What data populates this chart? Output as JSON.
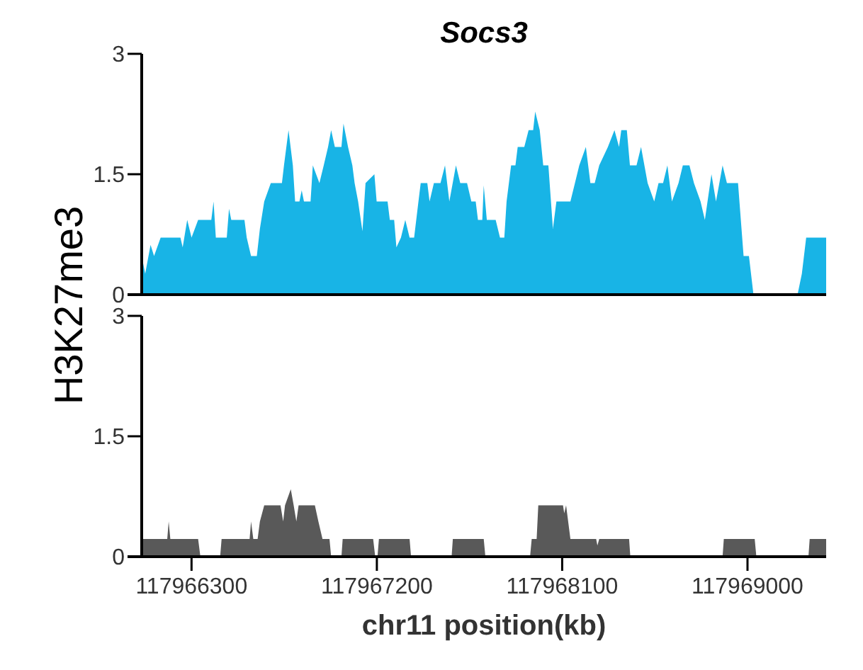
{
  "chart_data": [
    {
      "type": "area",
      "title": "Socs3",
      "ylabel": "H3K27me3",
      "tick_labels": "y",
      "color": "#18b4e6",
      "xlim": [
        117966058,
        117969382
      ],
      "ylim": [
        0,
        3
      ],
      "yticks": [
        0,
        1.5,
        3
      ],
      "x": [
        117966058,
        117966075,
        117966101,
        117966118,
        117966150,
        117966246,
        117966257,
        117966279,
        117966300,
        117966332,
        117966396,
        117966407,
        117966418,
        117966471,
        117966482,
        117966493,
        117966557,
        117966568,
        117966589,
        117966617,
        117966632,
        117966653,
        117966685,
        117966739,
        117966749,
        117966771,
        117966792,
        117966803,
        117966824,
        117966835,
        117966846,
        117966878,
        117966889,
        117966921,
        117966942,
        117966963,
        117966978,
        117966996,
        117967028,
        117967038,
        117967060,
        117967081,
        117967092,
        117967109,
        117967130,
        117967145,
        117967188,
        117967199,
        117967252,
        117967263,
        117967284,
        117967295,
        117967317,
        117967338,
        117967359,
        117967381,
        117967402,
        117967413,
        117967445,
        117967456,
        117967477,
        117967509,
        117967531,
        117967552,
        117967584,
        117967605,
        117967638,
        117967659,
        117967680,
        117967691,
        117967712,
        117967719,
        117967734,
        117967777,
        117967798,
        117967819,
        117967830,
        117967852,
        117967873,
        117967884,
        117967916,
        117967937,
        117967959,
        117967969,
        117967991,
        117968008,
        117968033,
        117968055,
        117968072,
        117968140,
        117968162,
        117968183,
        117968215,
        117968237,
        117968258,
        117968280,
        117968322,
        117968354,
        117968376,
        117968387,
        117968414,
        117968429,
        117968461,
        117968483,
        117968515,
        117968547,
        117968568,
        117968590,
        117968611,
        117968633,
        117968665,
        117968686,
        117968718,
        117968740,
        117968772,
        117968793,
        117968825,
        117968847,
        117968879,
        117968900,
        117968954,
        117968981,
        117969007,
        117969029,
        117969243,
        117969264,
        117969285,
        117969382
      ],
      "values": [
        0.48,
        0.26,
        0.62,
        0.48,
        0.71,
        0.71,
        0.59,
        0.93,
        0.71,
        0.93,
        0.93,
        1.16,
        0.71,
        0.71,
        1.07,
        0.93,
        0.93,
        0.71,
        0.48,
        0.48,
        0.82,
        1.16,
        1.39,
        1.39,
        1.61,
        2.05,
        1.61,
        1.16,
        1.16,
        1.3,
        1.16,
        1.16,
        1.61,
        1.39,
        1.61,
        1.84,
        2.05,
        1.84,
        1.84,
        2.13,
        1.84,
        1.61,
        1.39,
        1.16,
        0.79,
        1.39,
        1.5,
        1.16,
        1.16,
        0.93,
        0.93,
        0.59,
        0.71,
        0.93,
        0.71,
        0.71,
        1.16,
        1.39,
        1.39,
        1.16,
        1.39,
        1.39,
        1.61,
        1.16,
        1.61,
        1.39,
        1.39,
        1.16,
        1.16,
        0.93,
        0.93,
        1.36,
        0.93,
        0.93,
        0.71,
        0.71,
        1.16,
        1.61,
        1.61,
        1.84,
        1.84,
        2.05,
        2.05,
        2.28,
        2.05,
        1.61,
        1.61,
        0.82,
        1.16,
        1.16,
        1.39,
        1.61,
        1.84,
        1.39,
        1.39,
        1.61,
        1.84,
        2.05,
        1.84,
        2.05,
        2.05,
        1.61,
        1.61,
        1.84,
        1.39,
        1.16,
        1.39,
        1.39,
        1.61,
        1.16,
        1.39,
        1.61,
        1.61,
        1.39,
        1.16,
        0.93,
        1.5,
        1.16,
        1.61,
        1.39,
        1.39,
        0.48,
        0.48,
        0,
        0,
        0.26,
        0.71,
        0.71
      ]
    },
    {
      "type": "area",
      "xlabel": "chr11 position(kb)",
      "color": "#595959",
      "xlim": [
        117966058,
        117969382
      ],
      "ylim": [
        0,
        3
      ],
      "yticks": [
        0,
        1.5,
        3
      ],
      "xticks": [
        117966300,
        117967200,
        117968100,
        117969000
      ],
      "x": [
        117966058,
        117966182,
        117966189,
        117966197,
        117966332,
        117966343,
        117966439,
        117966446,
        117966582,
        117966589,
        117966600,
        117966621,
        117966632,
        117966653,
        117966732,
        117966745,
        117966754,
        117966782,
        117966796,
        117966809,
        117966820,
        117966899,
        117966916,
        117966936,
        117966970,
        117966978,
        117967028,
        117967034,
        117967182,
        117967192,
        117967203,
        117967210,
        117967359,
        117967366,
        117967563,
        117967569,
        117967719,
        117967727,
        117967944,
        117967952,
        117967976,
        117967984,
        117968104,
        117968110,
        117968119,
        117968140,
        117968265,
        117968271,
        117968280,
        117968425,
        117968431,
        117968879,
        117968885,
        117969035,
        117969043,
        117969296,
        117969302,
        117969382
      ],
      "values": [
        0.22,
        0.22,
        0.44,
        0.22,
        0.22,
        0,
        0,
        0.22,
        0.22,
        0.44,
        0.22,
        0.22,
        0.44,
        0.64,
        0.64,
        0.44,
        0.64,
        0.84,
        0.64,
        0.44,
        0.64,
        0.64,
        0.44,
        0.22,
        0.22,
        0,
        0,
        0.22,
        0.22,
        0,
        0,
        0.22,
        0.22,
        0,
        0,
        0.22,
        0.22,
        0,
        0,
        0.22,
        0.22,
        0.64,
        0.64,
        0.54,
        0.64,
        0.22,
        0.22,
        0.14,
        0.22,
        0.22,
        0,
        0,
        0.22,
        0.22,
        0,
        0,
        0.22,
        0.22
      ]
    }
  ]
}
